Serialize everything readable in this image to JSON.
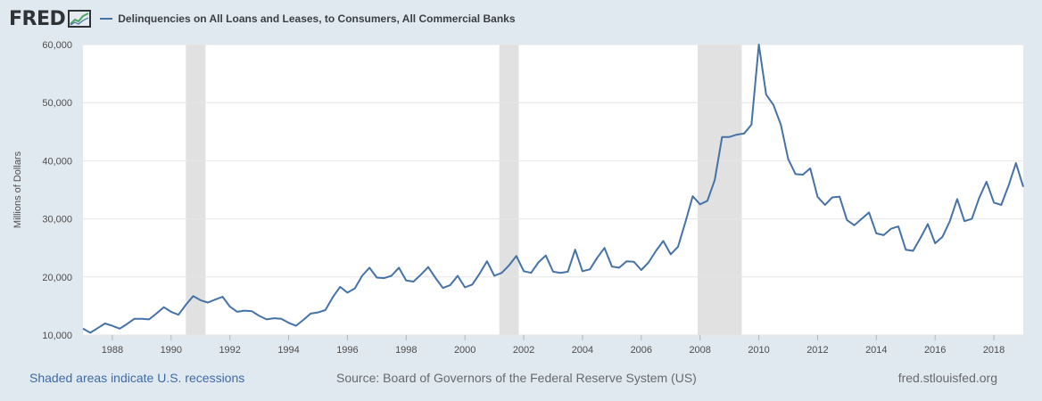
{
  "header": {
    "logo_text": "FRED",
    "logo_icon": "chart-line-icon",
    "title": "Delinquencies on All Loans and Leases, to Consumers, All Commercial Banks"
  },
  "footer": {
    "note": "Shaded areas indicate U.S. recessions",
    "source": "Source: Board of Governors of the Federal Reserve System (US)",
    "credit": "fred.stlouisfed.org"
  },
  "colors": {
    "line": "#4572a7",
    "recession": "#e1e1e1",
    "grid": "#e6e6e6",
    "background": "#e1e9f0",
    "plot": "#ffffff"
  },
  "chart_data": {
    "type": "line",
    "title": "Delinquencies on All Loans and Leases, to Consumers, All Commercial Banks",
    "ylabel": "Millions of Dollars",
    "xlabel": "",
    "xlim": [
      1987.0,
      2019.0
    ],
    "ylim": [
      10000,
      60000
    ],
    "yticks": [
      10000,
      20000,
      30000,
      40000,
      50000,
      60000
    ],
    "ytick_labels": [
      "10,000",
      "20,000",
      "30,000",
      "40,000",
      "50,000",
      "60,000"
    ],
    "xticks": [
      1988,
      1990,
      1992,
      1994,
      1996,
      1998,
      2000,
      2002,
      2004,
      2006,
      2008,
      2010,
      2012,
      2014,
      2016,
      2018
    ],
    "xtick_labels": [
      "1988",
      "1990",
      "1992",
      "1994",
      "1996",
      "1998",
      "2000",
      "2002",
      "2004",
      "2006",
      "2008",
      "2010",
      "2012",
      "2014",
      "2016",
      "2018"
    ],
    "grid": true,
    "recessions": [
      [
        1990.5,
        1991.17
      ],
      [
        2001.17,
        2001.83
      ],
      [
        2007.92,
        2009.42
      ]
    ],
    "series": [
      {
        "name": "Delinquencies on All Loans and Leases, to Consumers, All Commercial Banks",
        "x": [
          1987.0,
          1987.25,
          1987.5,
          1987.75,
          1988.0,
          1988.25,
          1988.5,
          1988.75,
          1989.0,
          1989.25,
          1989.5,
          1989.75,
          1990.0,
          1990.25,
          1990.5,
          1990.75,
          1991.0,
          1991.25,
          1991.5,
          1991.75,
          1992.0,
          1992.25,
          1992.5,
          1992.75,
          1993.0,
          1993.25,
          1993.5,
          1993.75,
          1994.0,
          1994.25,
          1994.5,
          1994.75,
          1995.0,
          1995.25,
          1995.5,
          1995.75,
          1996.0,
          1996.25,
          1996.5,
          1996.75,
          1997.0,
          1997.25,
          1997.5,
          1997.75,
          1998.0,
          1998.25,
          1998.5,
          1998.75,
          1999.0,
          1999.25,
          1999.5,
          1999.75,
          2000.0,
          2000.25,
          2000.5,
          2000.75,
          2001.0,
          2001.25,
          2001.5,
          2001.75,
          2002.0,
          2002.25,
          2002.5,
          2002.75,
          2003.0,
          2003.25,
          2003.5,
          2003.75,
          2004.0,
          2004.25,
          2004.5,
          2004.75,
          2005.0,
          2005.25,
          2005.5,
          2005.75,
          2006.0,
          2006.25,
          2006.5,
          2006.75,
          2007.0,
          2007.25,
          2007.5,
          2007.75,
          2008.0,
          2008.25,
          2008.5,
          2008.75,
          2009.0,
          2009.25,
          2009.5,
          2009.75,
          2010.0,
          2010.25,
          2010.5,
          2010.75,
          2011.0,
          2011.25,
          2011.5,
          2011.75,
          2012.0,
          2012.25,
          2012.5,
          2012.75,
          2013.0,
          2013.25,
          2013.5,
          2013.75,
          2014.0,
          2014.25,
          2014.5,
          2014.75,
          2015.0,
          2015.25,
          2015.5,
          2015.75,
          2016.0,
          2016.25,
          2016.5,
          2016.75,
          2017.0,
          2017.25,
          2017.5,
          2017.75,
          2018.0,
          2018.25,
          2018.5,
          2018.75,
          2019.0
        ],
        "values": [
          11100,
          10400,
          11200,
          12000,
          11600,
          11100,
          11900,
          12800,
          12800,
          12700,
          13700,
          14800,
          14000,
          13500,
          15200,
          16700,
          16000,
          15600,
          16100,
          16600,
          14900,
          14000,
          14200,
          14100,
          13300,
          12700,
          12900,
          12800,
          12100,
          11600,
          12600,
          13700,
          13900,
          14300,
          16500,
          18300,
          17300,
          18000,
          20200,
          21600,
          19900,
          19800,
          20200,
          21600,
          19400,
          19200,
          20400,
          21700,
          19800,
          18100,
          18600,
          20200,
          18200,
          18700,
          20600,
          22700,
          20200,
          20700,
          22000,
          23600,
          21000,
          20700,
          22500,
          23700,
          20900,
          20700,
          20900,
          24700,
          21000,
          21300,
          23300,
          25000,
          21800,
          21600,
          22700,
          22600,
          21200,
          22500,
          24500,
          26200,
          23900,
          25200,
          29400,
          33900,
          32500,
          33100,
          36700,
          44100,
          44100,
          44500,
          44700,
          46200,
          60000,
          51400,
          49600,
          46200,
          40300,
          37700,
          37600,
          38700,
          33800,
          32400,
          33700,
          33800,
          29800,
          28900,
          30000,
          31100,
          27500,
          27200,
          28300,
          28700,
          24700,
          24500,
          26700,
          29100,
          25800,
          26900,
          29600,
          33400,
          29600,
          30000,
          33600,
          36400,
          32800,
          32400,
          35700,
          39600,
          35500
        ]
      }
    ]
  }
}
